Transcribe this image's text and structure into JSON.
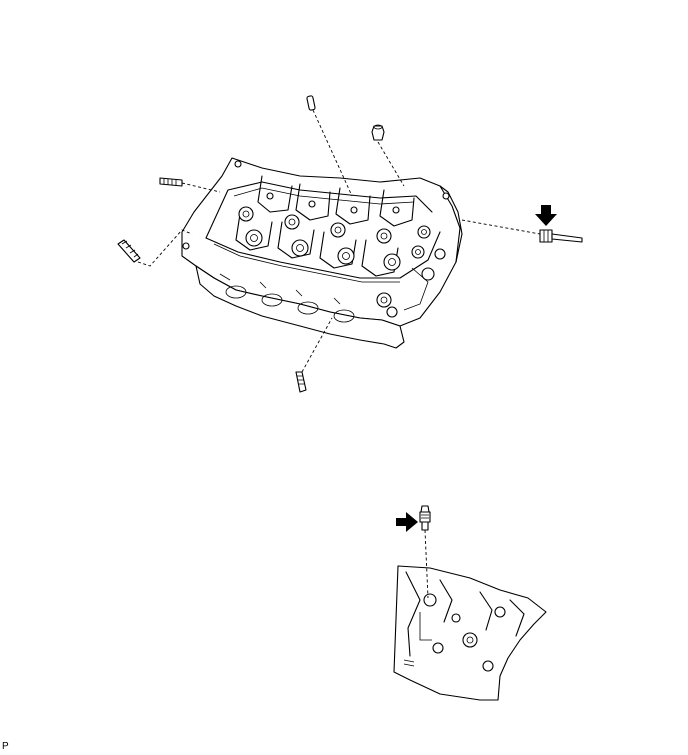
{
  "figure": {
    "corner_label": "P",
    "parts": {
      "straight_pin": "straight-pin",
      "ring_pin": "ring-pin",
      "stud_bolts": [
        "stud-bolt-left-upper",
        "stud-bolt-left-lower",
        "stud-bolt-bottom"
      ],
      "union_bolt": "union-bolt",
      "fitting": "fitting"
    },
    "arrows": [
      "arrow-down",
      "arrow-right"
    ],
    "colors": {
      "line": "#000000",
      "background": "#ffffff",
      "arrow": "#000000"
    }
  }
}
